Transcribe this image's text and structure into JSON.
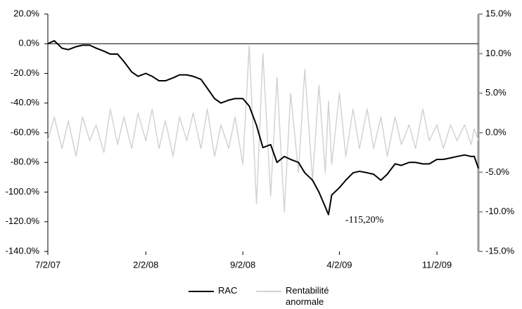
{
  "chart_data": {
    "type": "line",
    "x": [
      "7/2/07",
      "7/16/07",
      "8/2/07",
      "8/16/07",
      "9/2/07",
      "9/16/07",
      "10/2/07",
      "10/16/07",
      "11/2/07",
      "11/16/07",
      "12/2/07",
      "12/16/07",
      "1/2/08",
      "1/16/08",
      "2/2/08",
      "2/16/08",
      "3/2/08",
      "3/16/08",
      "4/2/08",
      "4/16/08",
      "5/2/08",
      "5/16/08",
      "6/2/08",
      "6/16/08",
      "7/2/08",
      "7/16/08",
      "8/2/08",
      "8/16/08",
      "9/2/08",
      "9/16/08",
      "10/2/08",
      "10/16/08",
      "11/2/08",
      "11/16/08",
      "12/2/08",
      "12/16/08",
      "1/2/09",
      "1/16/09",
      "2/2/09",
      "2/16/09",
      "3/2/09",
      "3/9/09",
      "3/16/09",
      "4/2/09",
      "4/16/09",
      "5/2/09",
      "5/16/09",
      "6/2/09",
      "6/16/09",
      "7/2/09",
      "7/16/09",
      "8/2/09",
      "8/16/09",
      "9/2/09",
      "9/16/09",
      "10/2/09",
      "10/16/09",
      "11/2/09",
      "11/16/09",
      "12/2/09",
      "12/16/09",
      "1/2/10",
      "1/16/10",
      "1/23/10",
      "2/1/10"
    ],
    "xlim": [
      "7/2/07",
      "2/1/10"
    ],
    "xticks": [
      "7/2/07",
      "2/2/08",
      "9/2/08",
      "4/2/09",
      "11/2/09"
    ],
    "ylim": [
      -140,
      20
    ],
    "yticks": [
      {
        "value": -140,
        "label": "-140.0%"
      },
      {
        "value": -120,
        "label": "-120.0%"
      },
      {
        "value": -100,
        "label": "-100.0%"
      },
      {
        "value": -80,
        "label": "-80.0%"
      },
      {
        "value": -60,
        "label": "-60.0%"
      },
      {
        "value": -40,
        "label": "-40.0%"
      },
      {
        "value": -20,
        "label": "-20.0%"
      },
      {
        "value": 0,
        "label": "0.0%"
      },
      {
        "value": 20,
        "label": "20.0%"
      }
    ],
    "y2lim": [
      -15,
      15
    ],
    "y2ticks": [
      {
        "value": -15,
        "label": "-15.0%"
      },
      {
        "value": -10,
        "label": "-10.0%"
      },
      {
        "value": -5,
        "label": "-5.0%"
      },
      {
        "value": 0,
        "label": "0.0%"
      },
      {
        "value": 5,
        "label": "5.0%"
      },
      {
        "value": 10,
        "label": "10.0%"
      },
      {
        "value": 15,
        "label": "15.0%"
      }
    ],
    "series": [
      {
        "name": "Rentabilité anormale",
        "color": "#d3d3d3",
        "axis": "y2",
        "values": [
          -1,
          2,
          -2,
          1.5,
          -3,
          2,
          -1,
          1,
          -2.5,
          3,
          -1.5,
          2,
          -2,
          2.5,
          -1,
          3,
          -2,
          1.5,
          -3,
          2,
          -1,
          2.5,
          -2,
          3,
          -3,
          1,
          -2,
          2,
          -4,
          11,
          -9,
          10,
          -8,
          7,
          -10,
          5,
          -5,
          8,
          -6,
          6,
          -5,
          4,
          -4,
          5,
          -3,
          3,
          -2,
          3,
          -2,
          2,
          -3,
          2,
          -1.5,
          1,
          -2,
          3,
          -1,
          1,
          -2,
          1,
          -1,
          1,
          -1.5,
          0.5,
          -1
        ]
      },
      {
        "name": "RAC",
        "color": "#000000",
        "values": [
          0,
          2,
          -3,
          -4,
          -2,
          -1,
          -1,
          -3,
          -5,
          -7,
          -7,
          -12,
          -19,
          -22,
          -20,
          -22,
          -25,
          -25,
          -23,
          -21,
          -21,
          -22,
          -24,
          -30,
          -37,
          -40,
          -38,
          -37,
          -37,
          -42,
          -55,
          -70,
          -68,
          -80,
          -76,
          -78,
          -80,
          -87,
          -92,
          -100,
          -110,
          -115.2,
          -102,
          -97,
          -92,
          -87,
          -86,
          -87,
          -88,
          -92,
          -88,
          -81,
          -82,
          -80,
          -80,
          -81,
          -81,
          -78,
          -78,
          -77,
          -76,
          -75,
          -76,
          -76,
          -84
        ],
        "value_labels": [
          null,
          null,
          null,
          null,
          null,
          null,
          null,
          null,
          null,
          null,
          null,
          null,
          null,
          null,
          null,
          null,
          null,
          null,
          null,
          null,
          null,
          null,
          null,
          null,
          null,
          null,
          null,
          null,
          null,
          null,
          null,
          null,
          null,
          null,
          null,
          null,
          null,
          null,
          null,
          null,
          null,
          "-115,20%",
          null,
          null,
          null,
          null,
          null,
          null,
          null,
          null,
          null,
          null,
          null,
          null,
          null,
          null,
          null,
          null,
          null,
          null,
          null,
          null,
          null,
          null,
          null
        ]
      }
    ],
    "legend": "bottom"
  }
}
